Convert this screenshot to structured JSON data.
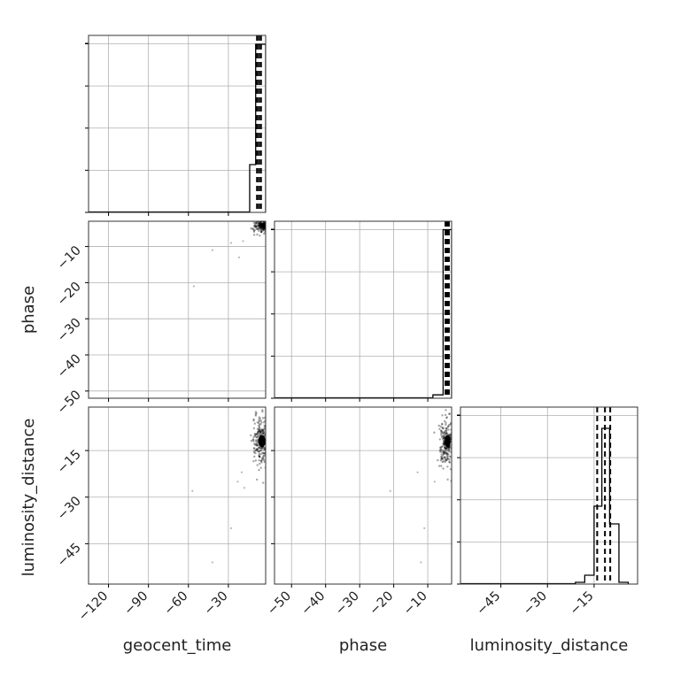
{
  "chart_data": {
    "type": "corner",
    "parameters": [
      "geocent_time",
      "phase",
      "luminosity_distance"
    ],
    "grid": true,
    "colors": {
      "line": "#000000",
      "grid": "#b0b0b0",
      "points": "#000000"
    },
    "panels": [
      {
        "id": "geocent_time-hist",
        "type": "histogram",
        "x_param": "geocent_time",
        "xlim": [
          -135,
          -2
        ],
        "xticks": [
          -120,
          -90,
          -60,
          -30
        ],
        "bins": [
          {
            "x0": -14,
            "x1": -9.5,
            "count": 27
          },
          {
            "x0": -9.5,
            "x1": -5,
            "count": 95
          },
          {
            "x0": -5,
            "x1": -2,
            "count": 95
          }
        ],
        "ylim": [
          0,
          100
        ],
        "quantiles": [
          -8.5,
          -7,
          -5.5
        ]
      },
      {
        "id": "phase-geocent_time-scatter",
        "type": "scatter",
        "x_param": "geocent_time",
        "y_param": "phase",
        "xlim": [
          -135,
          -2
        ],
        "ylim": [
          -52,
          -3
        ],
        "xticks": [
          -120,
          -90,
          -60,
          -30
        ],
        "yticks": [
          -10,
          -20,
          -30,
          -40,
          -50
        ],
        "ytick_labels": [
          "−10",
          "−20",
          "−30",
          "−40",
          "−50"
        ],
        "outliers": [
          [
            -56,
            -21
          ],
          [
            -42,
            -11
          ],
          [
            -22,
            -13
          ],
          [
            -28,
            -9
          ],
          [
            -19,
            -8.5
          ]
        ],
        "core": {
          "cx": -4.5,
          "cy": -4.2,
          "sx": 3.2,
          "sy": 0.9,
          "n": 200
        }
      },
      {
        "id": "phase-hist",
        "type": "histogram",
        "x_param": "phase",
        "xlim": [
          -55,
          -3
        ],
        "bins": [
          {
            "x0": -8.5,
            "x1": -5.5,
            "count": 2
          },
          {
            "x0": -5.5,
            "x1": -3,
            "count": 100
          }
        ],
        "ylim": [
          0,
          105
        ],
        "quantiles": [
          -4.8,
          -4.3,
          -3.8
        ]
      },
      {
        "id": "luminosity_distance-geocent_time-scatter",
        "type": "scatter",
        "x_param": "geocent_time",
        "y_param": "luminosity_distance",
        "xlim": [
          -135,
          -2
        ],
        "ylim": [
          -58,
          -1
        ],
        "xticks": [
          -120,
          -90,
          -60,
          -30
        ],
        "xtick_labels": [
          "−120",
          "−90",
          "−60",
          "−30"
        ],
        "yticks": [
          -15,
          -30,
          -45
        ],
        "ytick_labels": [
          "−15",
          "−30",
          "−45"
        ],
        "outliers": [
          [
            -57,
            -28
          ],
          [
            -28,
            -40
          ],
          [
            -42,
            -51
          ],
          [
            -20,
            -22
          ],
          [
            -18,
            -27
          ],
          [
            -23,
            -25
          ]
        ],
        "core": {
          "cx": -6,
          "cy": -12,
          "sx": 3,
          "sy": 4,
          "n": 220
        }
      },
      {
        "id": "luminosity_distance-phase-scatter",
        "type": "scatter",
        "x_param": "phase",
        "y_param": "luminosity_distance",
        "xlim": [
          -55,
          -3
        ],
        "ylim": [
          -58,
          -1
        ],
        "xticks": [
          -50,
          -40,
          -30,
          -20,
          -10
        ],
        "xtick_labels": [
          "−50",
          "−40",
          "−30",
          "−20",
          "−10"
        ],
        "yticks": [
          -15,
          -30,
          -45
        ],
        "outliers": [
          [
            -21,
            -28
          ],
          [
            -13,
            -22
          ],
          [
            -11,
            -40
          ],
          [
            -12,
            -51
          ],
          [
            -8,
            -25
          ]
        ],
        "core": {
          "cx": -4.6,
          "cy": -12,
          "sx": 1.0,
          "sy": 4,
          "n": 220
        }
      },
      {
        "id": "luminosity_distance-hist",
        "type": "histogram",
        "x_param": "luminosity_distance",
        "xlim": [
          -58,
          -1
        ],
        "xticks": [
          -45,
          -30,
          -15
        ],
        "xtick_labels": [
          "−45",
          "−30",
          "−15"
        ],
        "bins": [
          {
            "x0": -21,
            "x1": -18,
            "count": 1
          },
          {
            "x0": -18,
            "x1": -15,
            "count": 5
          },
          {
            "x0": -15,
            "x1": -12.5,
            "count": 44
          },
          {
            "x0": -12.5,
            "x1": -10,
            "count": 88
          },
          {
            "x0": -10,
            "x1": -7,
            "count": 34
          },
          {
            "x0": -7,
            "x1": -4,
            "count": 1
          }
        ],
        "ylim": [
          0,
          100
        ],
        "quantiles": [
          -14,
          -11.5,
          -9.8
        ]
      }
    ]
  }
}
